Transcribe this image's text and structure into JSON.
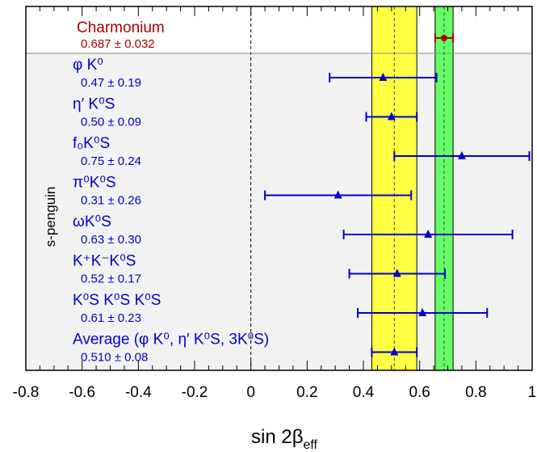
{
  "chart_data": {
    "type": "scatter",
    "xlabel": "sin 2β",
    "xlabel_sub": "eff",
    "xlim": [
      -0.8,
      1.0
    ],
    "x_ticks": [
      "-0.8",
      "-0.6",
      "-0.4",
      "-0.2",
      "0",
      "0.2",
      "0.4",
      "0.6",
      "0.8",
      "1"
    ],
    "group_label": "s-penguin",
    "reference": {
      "name": "Charmonium",
      "value_text": "0.687 ± 0.032",
      "value": 0.687,
      "error": 0.032,
      "color": "#aa0000",
      "band_color": "#66ff66"
    },
    "average_band": {
      "value": 0.51,
      "low": 0.43,
      "high": 0.59,
      "color": "#ffff44"
    },
    "measurements": [
      {
        "name": "φ K⁰",
        "value_text": "0.47 ± 0.19",
        "value": 0.47,
        "err_low": 0.19,
        "err_high": 0.19
      },
      {
        "name": "η′ K⁰S",
        "value_text": "0.50 ± 0.09",
        "value": 0.5,
        "err_low": 0.09,
        "err_high": 0.09
      },
      {
        "name": "f₀K⁰S",
        "value_text": "0.75 ± 0.24",
        "value": 0.75,
        "err_low": 0.24,
        "err_high": 0.24
      },
      {
        "name": "π⁰K⁰S",
        "value_text": "0.31 ± 0.26",
        "value": 0.31,
        "err_low": 0.26,
        "err_high": 0.26
      },
      {
        "name": "ωK⁰S",
        "value_text": "0.63 ± 0.30",
        "value": 0.63,
        "err_low": 0.3,
        "err_high": 0.3
      },
      {
        "name": "K⁺K⁻K⁰S",
        "value_text": "0.52 ± 0.17",
        "value": 0.52,
        "err_low": 0.17,
        "err_high": 0.17
      },
      {
        "name": "K⁰S K⁰S K⁰S",
        "value_text": "0.61 ± 0.23",
        "value": 0.61,
        "err_low": 0.23,
        "err_high": 0.23
      },
      {
        "name": "Average (φ K⁰, η′ K⁰S, 3K⁰S)",
        "value_text": "0.510 ± 0.08",
        "value": 0.51,
        "err_low": 0.08,
        "err_high": 0.08
      }
    ],
    "colors": {
      "measurement": "#0000cc",
      "shaded_region": "#f2f2f2"
    }
  }
}
